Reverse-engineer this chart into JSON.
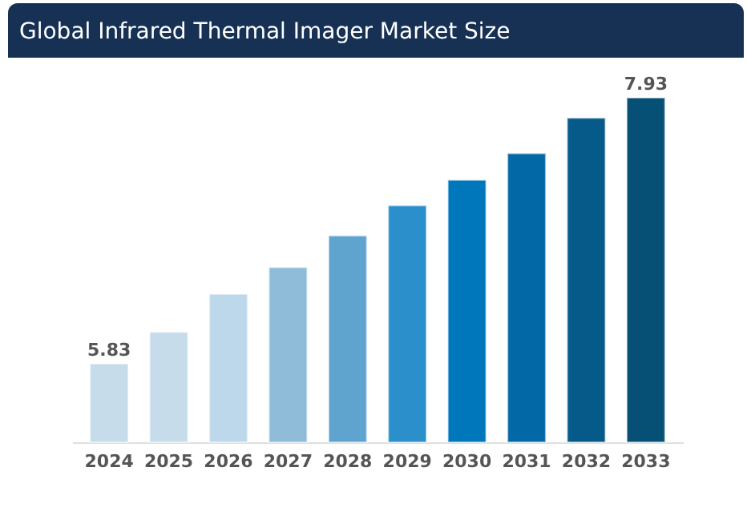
{
  "chart_data": {
    "type": "bar",
    "title": "Global Infrared Thermal Imager Market Size",
    "categories": [
      "2024",
      "2025",
      "2026",
      "2027",
      "2028",
      "2029",
      "2030",
      "2031",
      "2032",
      "2033"
    ],
    "values": [
      5.83,
      6.08,
      6.38,
      6.59,
      6.84,
      7.08,
      7.28,
      7.49,
      7.77,
      7.93
    ],
    "value_labels": [
      "5.83",
      null,
      null,
      null,
      null,
      null,
      null,
      null,
      null,
      "7.93"
    ],
    "colors": [
      "#c6dcea",
      "#c6dcea",
      "#bcd8ea",
      "#8fbcd9",
      "#5ea4cf",
      "#2b8fcb",
      "#0076bb",
      "#0369a6",
      "#055a8a",
      "#064f75"
    ],
    "ylim": [
      5.21,
      7.93
    ],
    "tick_labels": "x",
    "grid": false
  }
}
